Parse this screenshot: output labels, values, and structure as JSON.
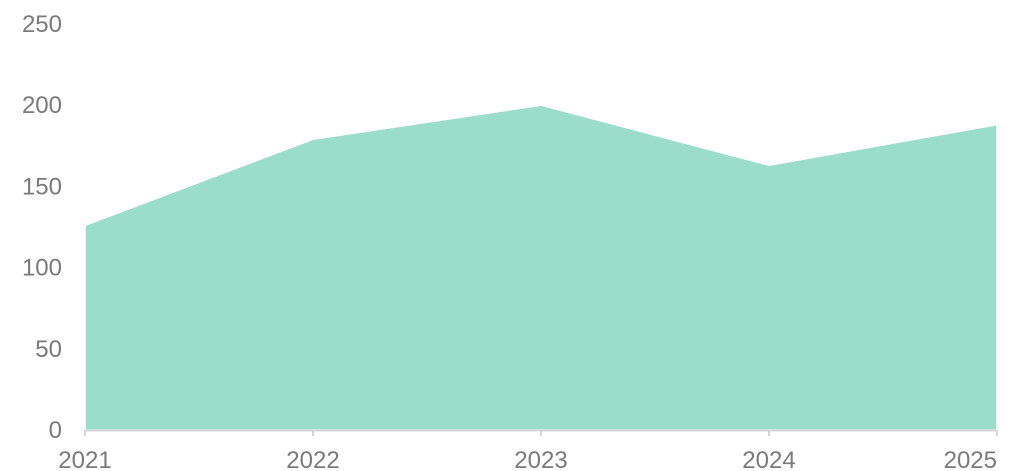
{
  "chart_data": {
    "type": "area",
    "title": "",
    "xlabel": "",
    "ylabel": "",
    "categories": [
      "2021",
      "2022",
      "2023",
      "2024",
      "2025"
    ],
    "values": [
      126,
      179,
      200,
      163,
      188
    ],
    "ylim": [
      0,
      250
    ],
    "yticks": [
      0,
      50,
      100,
      150,
      200,
      250
    ],
    "grid": false,
    "legend": "none",
    "colors": {
      "area_fill": "#9bddcb",
      "area_stroke": "#ffffff",
      "axis": "#d6d6d6",
      "tick_label": "#7a7a7a"
    }
  }
}
